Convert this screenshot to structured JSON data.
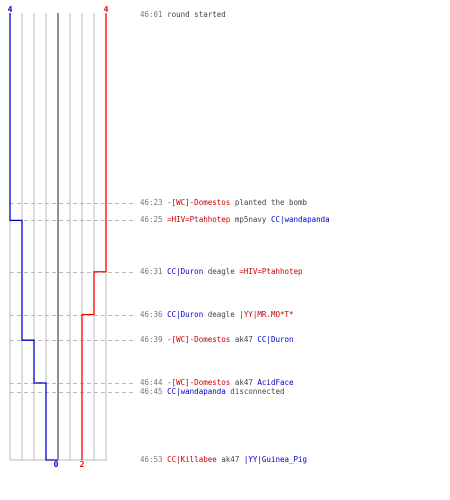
{
  "colors": {
    "red": "#ff0000",
    "blue": "#0000cc",
    "red_text": "#cc0000",
    "blue_text": "#0000cc",
    "grid": "#bbbbbb",
    "center": "#777777",
    "dashed": "#bbbbbb",
    "time": "#777777",
    "text": "#444444"
  },
  "score": {
    "blue_start": "4",
    "red_start": "4",
    "blue_end": "0",
    "red_end": "2"
  },
  "timeline": {
    "time_min": "46:01",
    "time_max": "46:53",
    "lanes": 8,
    "blue_steps": [
      {
        "time": "46:01",
        "alive": 4
      },
      {
        "time": "46:25",
        "alive": 3
      },
      {
        "time": "46:39",
        "alive": 2
      },
      {
        "time": "46:44",
        "alive": 1
      },
      {
        "time": "46:53",
        "alive": 0
      }
    ],
    "red_steps": [
      {
        "time": "46:01",
        "alive": 4
      },
      {
        "time": "46:31",
        "alive": 3
      },
      {
        "time": "46:36",
        "alive": 2
      }
    ]
  },
  "events": [
    {
      "time": "46:01",
      "parts": [
        {
          "text": "round started",
          "c": "plain"
        }
      ],
      "line": false
    },
    {
      "time": "46:23",
      "parts": [
        {
          "text": "-[WC]-Domestos",
          "c": "red"
        },
        {
          "text": " planted the bomb",
          "c": "plain"
        }
      ],
      "line": true
    },
    {
      "time": "46:25",
      "parts": [
        {
          "text": "=HIV=Ptahhotep",
          "c": "red"
        },
        {
          "text": " mp5navy ",
          "c": "plain"
        },
        {
          "text": "CC|wandapanda",
          "c": "blue"
        }
      ],
      "line": true
    },
    {
      "time": "46:31",
      "parts": [
        {
          "text": "CC|Duron",
          "c": "blue"
        },
        {
          "text": " deagle ",
          "c": "plain"
        },
        {
          "text": "=HIV=Ptahhotep",
          "c": "red"
        }
      ],
      "line": true
    },
    {
      "time": "46:36",
      "parts": [
        {
          "text": "CC|Duron",
          "c": "blue"
        },
        {
          "text": " deagle ",
          "c": "plain"
        },
        {
          "text": "|YY|MR.MO*T*",
          "c": "red"
        }
      ],
      "line": true
    },
    {
      "time": "46:39",
      "parts": [
        {
          "text": "-[WC]-Domestos",
          "c": "red"
        },
        {
          "text": " ak47 ",
          "c": "plain"
        },
        {
          "text": "CC|Duron",
          "c": "blue"
        }
      ],
      "line": true
    },
    {
      "time": "46:44",
      "parts": [
        {
          "text": "-[WC]-Domestos",
          "c": "red"
        },
        {
          "text": " ak47 ",
          "c": "plain"
        },
        {
          "text": "AcidFace",
          "c": "blue"
        }
      ],
      "line": true
    },
    {
      "time": "46:45",
      "parts": [
        {
          "text": "CC|wandapanda",
          "c": "blue"
        },
        {
          "text": " disconnected",
          "c": "plain"
        }
      ],
      "line": true
    },
    {
      "time": "46:53",
      "parts": [
        {
          "text": "CC|Killabee",
          "c": "red"
        },
        {
          "text": " ak47 ",
          "c": "plain"
        },
        {
          "text": "|YY|Guinea_Pig",
          "c": "blue"
        }
      ],
      "line": false
    }
  ]
}
